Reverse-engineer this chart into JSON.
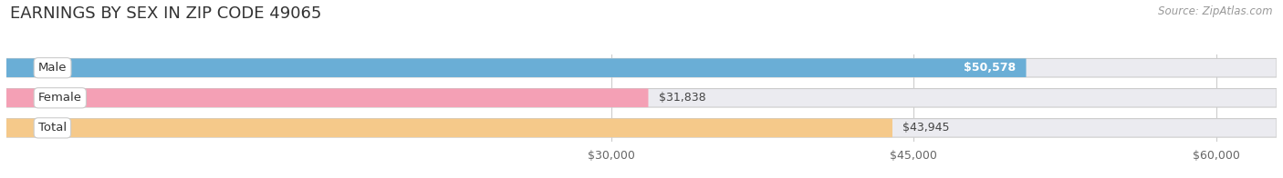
{
  "title": "EARNINGS BY SEX IN ZIP CODE 49065",
  "source": "Source: ZipAtlas.com",
  "categories": [
    "Male",
    "Female",
    "Total"
  ],
  "values": [
    50578,
    31838,
    43945
  ],
  "bar_colors": [
    "#6aaed6",
    "#f4a0b5",
    "#f5c98a"
  ],
  "label_colors": [
    "white",
    "#555555",
    "#555555"
  ],
  "label_inside": [
    true,
    false,
    false
  ],
  "bar_bg_color": "#e0e0e8",
  "x_min": 0,
  "x_max": 63000,
  "x_ticks": [
    30000,
    45000,
    60000
  ],
  "x_tick_labels": [
    "$30,000",
    "$45,000",
    "$60,000"
  ],
  "value_labels": [
    "$50,578",
    "$31,838",
    "$43,945"
  ],
  "title_fontsize": 13,
  "source_fontsize": 8.5,
  "bar_label_fontsize": 9,
  "tick_fontsize": 9,
  "category_fontsize": 9.5,
  "background_color": "#ffffff",
  "bar_height": 0.62,
  "bar_bg_color2": "#ebebf0"
}
